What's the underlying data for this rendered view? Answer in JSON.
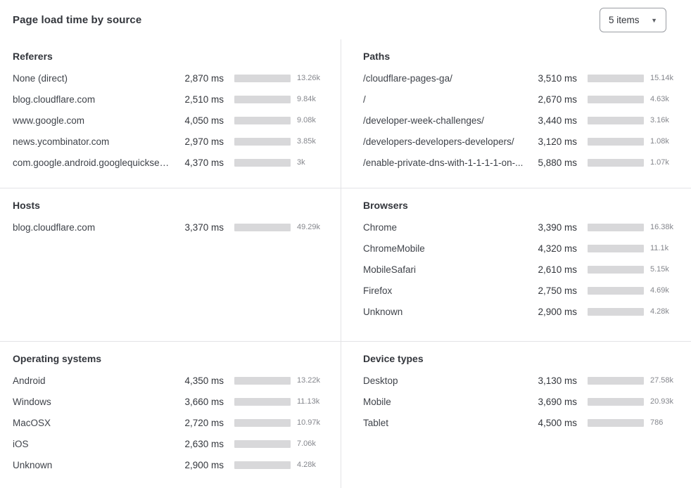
{
  "header": {
    "title": "Page load time by source",
    "items_dropdown": {
      "value": "5 items"
    }
  },
  "colors": {
    "bar_fill": "#3d6fe3",
    "bar_track": "#d8d8da"
  },
  "value_suffix": "ms",
  "chart_data": [
    {
      "type": "bar",
      "orientation": "horizontal",
      "title": "Referers",
      "categories": [
        "None (direct)",
        "blog.cloudflare.com",
        "www.google.com",
        "news.ycombinator.com",
        "com.google.android.googlequicksearc..."
      ],
      "values": [
        2870,
        2510,
        4050,
        2970,
        4370
      ],
      "value_unit": "ms",
      "counts": [
        "13.26k",
        "9.84k",
        "9.08k",
        "3.85k",
        "3k"
      ],
      "axis_max": 7200
    },
    {
      "type": "bar",
      "orientation": "horizontal",
      "title": "Paths",
      "categories": [
        "/cloudflare-pages-ga/",
        "/",
        "/developer-week-challenges/",
        "/developers-developers-developers/",
        "/enable-private-dns-with-1-1-1-1-on-..."
      ],
      "values": [
        3510,
        2670,
        3440,
        3120,
        5880
      ],
      "value_unit": "ms",
      "counts": [
        "15.14k",
        "4.63k",
        "3.16k",
        "1.08k",
        "1.07k"
      ],
      "axis_max": 6600
    },
    {
      "type": "bar",
      "orientation": "horizontal",
      "title": "Hosts",
      "categories": [
        "blog.cloudflare.com"
      ],
      "values": [
        3370
      ],
      "value_unit": "ms",
      "counts": [
        "49.29k"
      ],
      "axis_max": 3370
    },
    {
      "type": "bar",
      "orientation": "horizontal",
      "title": "Browsers",
      "categories": [
        "Chrome",
        "ChromeMobile",
        "MobileSafari",
        "Firefox",
        "Unknown"
      ],
      "values": [
        3390,
        4320,
        2610,
        2750,
        2900
      ],
      "value_unit": "ms",
      "counts": [
        "16.38k",
        "11.1k",
        "5.15k",
        "4.69k",
        "4.28k"
      ],
      "axis_max": 6000
    },
    {
      "type": "bar",
      "orientation": "horizontal",
      "title": "Operating systems",
      "categories": [
        "Android",
        "Windows",
        "MacOSX",
        "iOS",
        "Unknown"
      ],
      "values": [
        4350,
        3660,
        2720,
        2630,
        2900
      ],
      "value_unit": "ms",
      "counts": [
        "13.22k",
        "11.13k",
        "10.97k",
        "7.06k",
        "4.28k"
      ],
      "axis_max": 4650
    },
    {
      "type": "bar",
      "orientation": "horizontal",
      "title": "Device types",
      "categories": [
        "Desktop",
        "Mobile",
        "Tablet"
      ],
      "values": [
        3130,
        3690,
        4500
      ],
      "value_unit": "ms",
      "counts": [
        "27.58k",
        "20.93k",
        "786"
      ],
      "axis_max": 4500
    }
  ]
}
